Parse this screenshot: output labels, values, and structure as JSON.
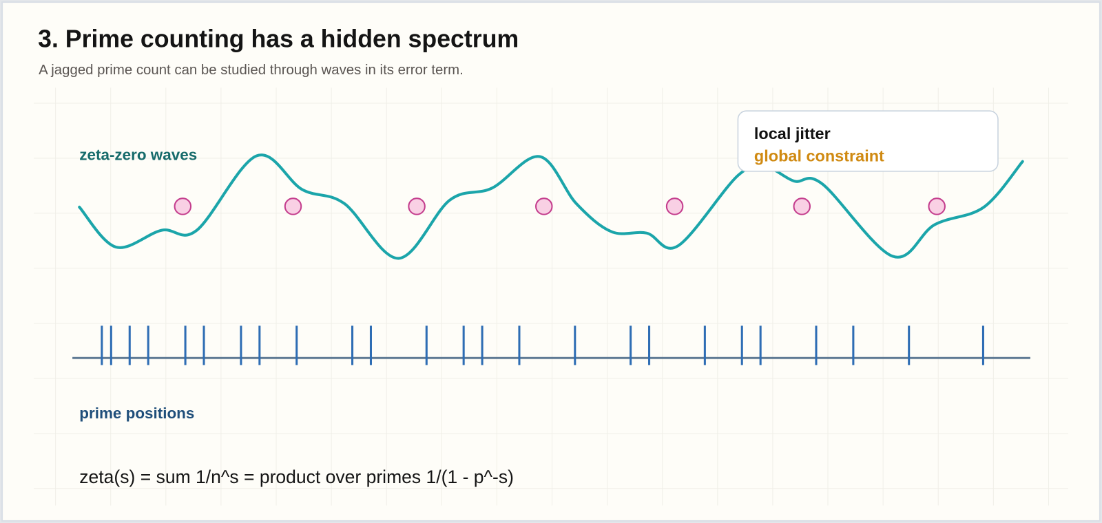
{
  "header": {
    "title": "3. Prime counting has a hidden spectrum",
    "subtitle": "A jagged prime count can be studied through waves in its error term."
  },
  "labels": {
    "waves": "zeta-zero waves",
    "primes": "prime positions"
  },
  "callout": {
    "line1": "local jitter",
    "line2": "global constraint"
  },
  "formula": "zeta(s) = sum 1/n^s = product over primes 1/(1 - p^-s)"
}
